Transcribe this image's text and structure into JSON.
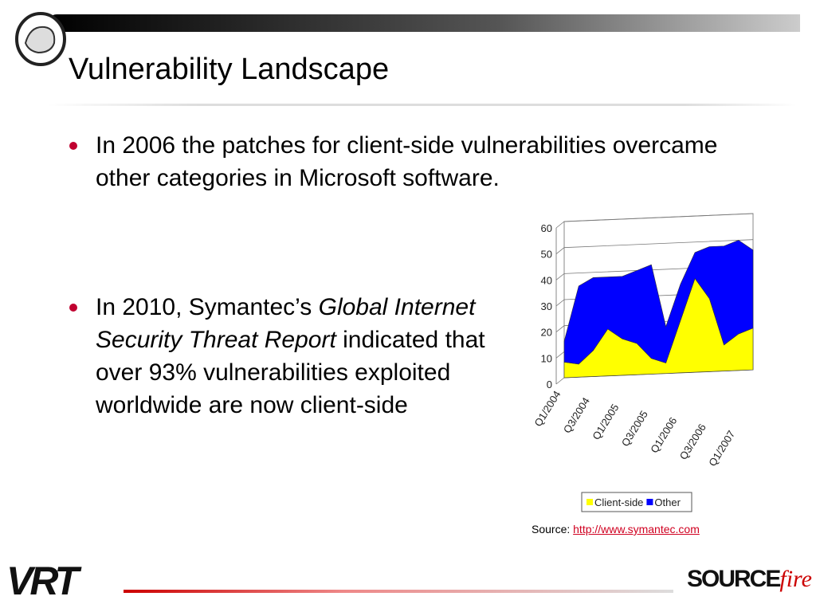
{
  "header": {
    "title": "Vulnerability Landscape"
  },
  "bullets": [
    {
      "text": "In 2006 the patches for client-side vulnerabilities overcame other categories in Microsoft software."
    },
    {
      "before": "In 2010, Symantec’s",
      "italic": "Global Internet Security Threat Report",
      "after": "indicated that over 93% vulnerabilities exploited worldwide are now client-side"
    }
  ],
  "chart_data": {
    "type": "stacked_area",
    "categories": [
      "Q1/2004",
      null,
      "Q3/2004",
      null,
      "Q1/2005",
      null,
      "Q3/2005",
      null,
      "Q1/2006",
      null,
      "Q3/2006",
      null,
      "Q1/2007",
      null
    ],
    "series": [
      {
        "name": "Client-side",
        "color": "#ffff00",
        "values": [
          6,
          5,
          10,
          18,
          14,
          12,
          6,
          4,
          20,
          36,
          28,
          10,
          14,
          16
        ]
      },
      {
        "name": "Other",
        "color": "#0000ff",
        "values": [
          8,
          30,
          28,
          20,
          24,
          28,
          36,
          14,
          14,
          10,
          20,
          38,
          36,
          30
        ]
      }
    ],
    "ylim": [
      0,
      60
    ],
    "yticks": [
      0,
      10,
      20,
      30,
      40,
      50,
      60
    ],
    "grid": true
  },
  "source": {
    "label": "Source:",
    "link": "http://www.symantec.com"
  },
  "footer": {
    "left_logo": "VRT",
    "right_logo_a": "SOURCE",
    "right_logo_b": "fire"
  }
}
